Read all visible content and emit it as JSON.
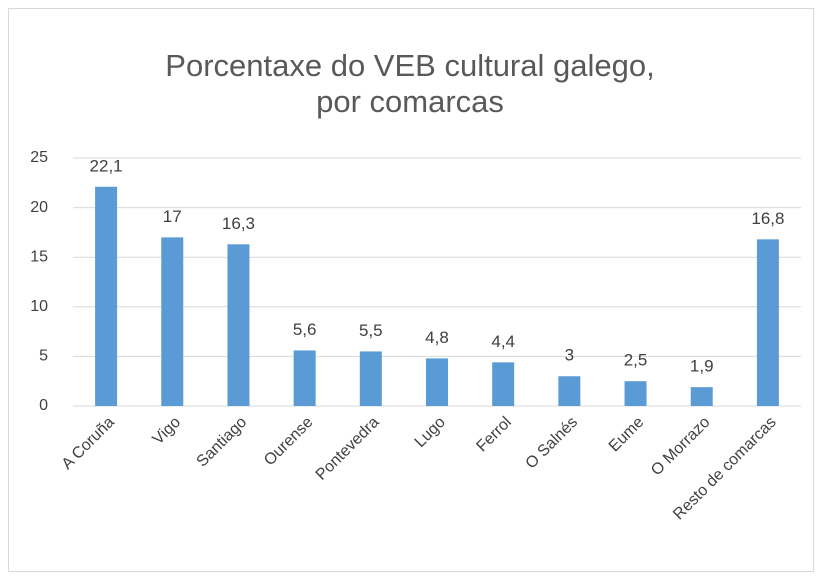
{
  "chart_data": {
    "type": "bar",
    "title": "Porcentaxe do VEB cultural galego, por comarcas",
    "categories": [
      "A Coruña",
      "Vigo",
      "Santiago",
      "Ourense",
      "Pontevedra",
      "Lugo",
      "Ferrol",
      "O Salnés",
      "Eume",
      "O Morrazo",
      "Resto de comarcas"
    ],
    "values": [
      22.1,
      17,
      16.3,
      5.6,
      5.5,
      4.8,
      4.4,
      3,
      2.5,
      1.9,
      16.8
    ],
    "value_labels": [
      "22,1",
      "17",
      "16,3",
      "5,6",
      "5,5",
      "4,8",
      "4,4",
      "3",
      "2,5",
      "1,9",
      "16,8"
    ],
    "color": "#5b9bd5",
    "ylim": [
      0,
      25
    ],
    "yticks": [
      0,
      5,
      10,
      15,
      20,
      25
    ],
    "grid": true
  }
}
